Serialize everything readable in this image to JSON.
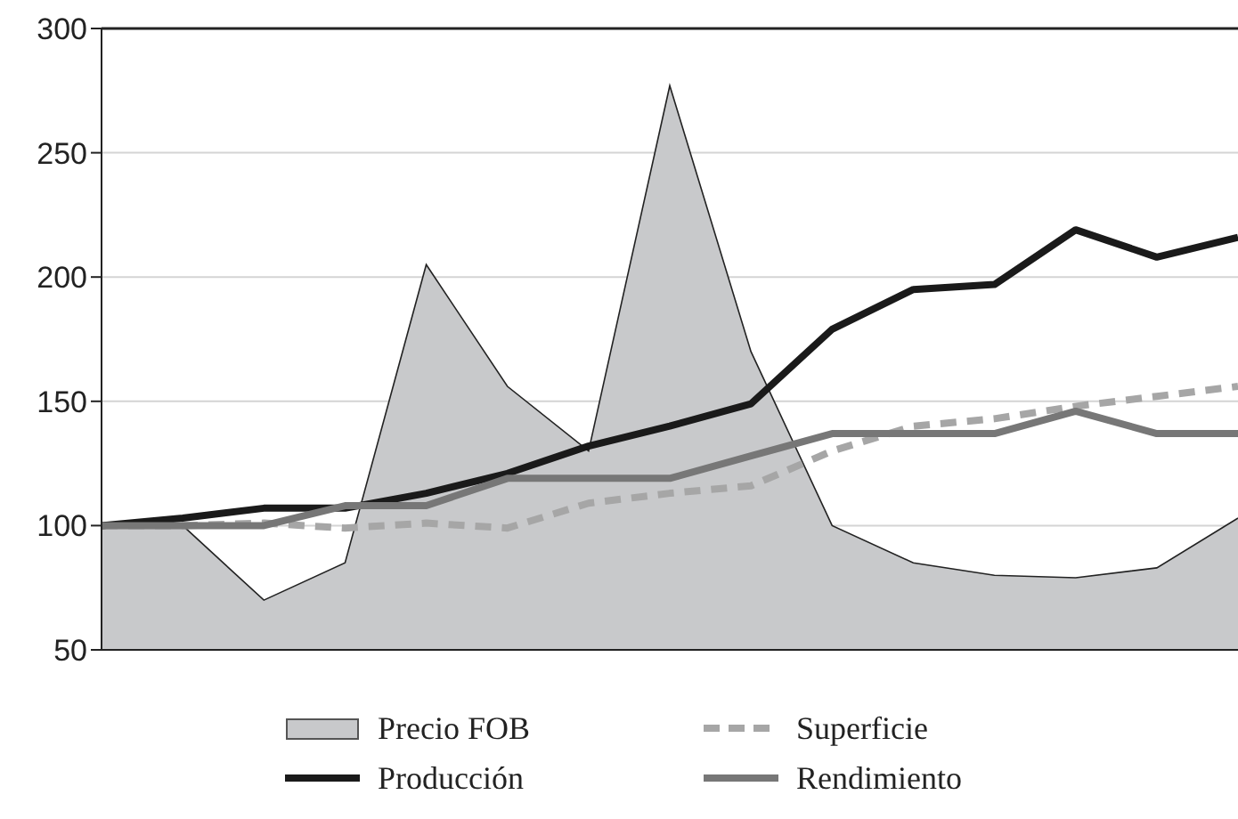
{
  "chart_data": {
    "type": "line",
    "categories": [
      null,
      null,
      null,
      null,
      null,
      null,
      null,
      null,
      null,
      null,
      null,
      null,
      null,
      null,
      null
    ],
    "series": [
      {
        "name": "Precio FOB",
        "type": "area",
        "color": "#c8c9cb",
        "values": [
          100,
          100,
          70,
          85,
          205,
          156,
          130,
          277,
          170,
          100,
          85,
          80,
          79,
          83,
          103
        ]
      },
      {
        "name": "Superficie",
        "color": "#a6a6a6",
        "line_style": "dashed",
        "values": [
          100,
          100,
          101,
          99,
          101,
          99,
          109,
          113,
          116,
          130,
          140,
          143,
          148,
          152,
          156
        ]
      },
      {
        "name": "Producción",
        "color": "#1a1a1a",
        "values": [
          100,
          103,
          107,
          107,
          113,
          121,
          132,
          140,
          149,
          179,
          195,
          197,
          219,
          208,
          216
        ]
      },
      {
        "name": "Rendimiento",
        "color": "#777777",
        "values": [
          100,
          100,
          100,
          108,
          108,
          119,
          119,
          119,
          128,
          137,
          137,
          137,
          146,
          137,
          137
        ]
      }
    ],
    "ylim": [
      50,
      300
    ],
    "yticks": [
      50,
      100,
      150,
      200,
      250,
      300
    ],
    "grid": "y",
    "legend": "bottom",
    "tick_labels": "y",
    "marker": "none"
  }
}
